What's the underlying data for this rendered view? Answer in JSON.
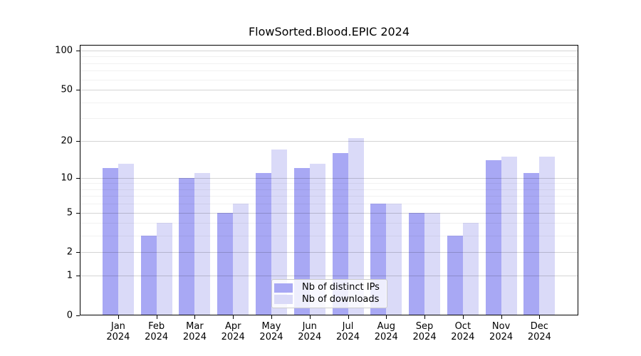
{
  "chart_data": {
    "type": "bar",
    "title": "FlowSorted.Blood.EPIC 2024",
    "categories": [
      "Jan",
      "Feb",
      "Mar",
      "Apr",
      "May",
      "Jun",
      "Jul",
      "Aug",
      "Sep",
      "Oct",
      "Nov",
      "Dec"
    ],
    "category_year": "2024",
    "series": [
      {
        "name": "Nb of distinct IPs",
        "color": "#a8a8f4",
        "values": [
          12,
          3,
          10,
          5,
          11,
          12,
          16,
          6,
          5,
          3,
          14,
          11
        ]
      },
      {
        "name": "Nb of downloads",
        "color": "#dadaf8",
        "values": [
          13,
          4,
          11,
          6,
          17,
          13,
          21,
          6,
          5,
          4,
          15,
          15
        ]
      }
    ],
    "y_axis": {
      "scale": "log10(1+v)",
      "ticks": [
        0,
        1,
        2,
        5,
        10,
        20,
        50,
        100
      ],
      "minor_gridlines": [
        3,
        4,
        6,
        7,
        8,
        9,
        30,
        40,
        60,
        70,
        80,
        90
      ],
      "ymax": 110
    },
    "x_axis": {
      "label_lines": 2
    },
    "legend": {
      "position": "bottom-center",
      "entries": [
        "Nb of distinct IPs",
        "Nb of downloads"
      ]
    },
    "grid": "horizontal"
  }
}
